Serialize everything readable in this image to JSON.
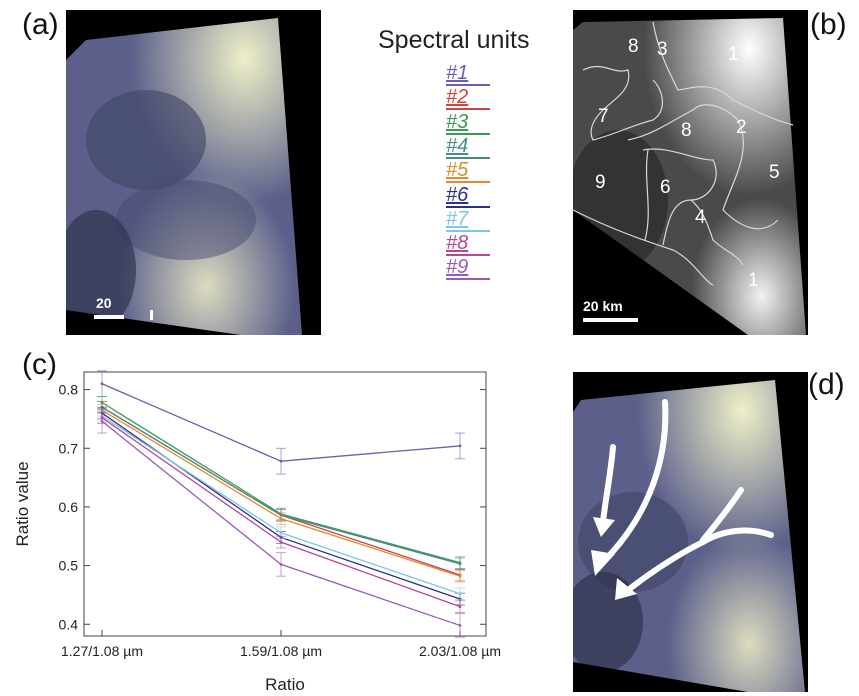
{
  "panels": {
    "a": {
      "label": "(a)",
      "scale_label": "20"
    },
    "b": {
      "label": "(b)",
      "scale_label": "20 km",
      "region_numbers": [
        "1",
        "2",
        "3",
        "4",
        "5",
        "6",
        "7",
        "8",
        "8",
        "9",
        "1"
      ]
    },
    "c": {
      "label": "(c)"
    },
    "d": {
      "label": "(d)"
    }
  },
  "legend": {
    "title": "Spectral units",
    "items": [
      {
        "label": "#1",
        "color": "#6a5fb0"
      },
      {
        "label": "#2",
        "color": "#d0443c"
      },
      {
        "label": "#3",
        "color": "#3f9a55"
      },
      {
        "label": "#4",
        "color": "#4a8a86"
      },
      {
        "label": "#5",
        "color": "#e08a2e"
      },
      {
        "label": "#6",
        "color": "#2b2f8f"
      },
      {
        "label": "#7",
        "color": "#7ec6e4"
      },
      {
        "label": "#8",
        "color": "#b8478f"
      },
      {
        "label": "#9",
        "color": "#9a5bb5"
      }
    ]
  },
  "chart_data": {
    "type": "line",
    "xlabel": "Ratio",
    "ylabel": "Ratio value",
    "categories": [
      "1.27/1.08 µm",
      "1.59/1.08 µm",
      "2.03/1.08 µm"
    ],
    "ylim": [
      0.38,
      0.83
    ],
    "yticks": [
      "0.4",
      "0.5",
      "0.6",
      "0.7",
      "0.8"
    ],
    "series": [
      {
        "name": "#1",
        "values": [
          0.81,
          0.678,
          0.704
        ],
        "error": 0.022
      },
      {
        "name": "#2",
        "values": [
          0.77,
          0.586,
          0.484
        ],
        "error": 0.01
      },
      {
        "name": "#3",
        "values": [
          0.778,
          0.588,
          0.505
        ],
        "error": 0.01
      },
      {
        "name": "#4",
        "values": [
          0.77,
          0.586,
          0.503
        ],
        "error": 0.01
      },
      {
        "name": "#5",
        "values": [
          0.765,
          0.58,
          0.482
        ],
        "error": 0.01
      },
      {
        "name": "#6",
        "values": [
          0.76,
          0.548,
          0.443
        ],
        "error": 0.01
      },
      {
        "name": "#7",
        "values": [
          0.755,
          0.556,
          0.452
        ],
        "error": 0.01
      },
      {
        "name": "#8",
        "values": [
          0.752,
          0.54,
          0.43
        ],
        "error": 0.01
      },
      {
        "name": "#9",
        "values": [
          0.746,
          0.502,
          0.398
        ],
        "error": 0.02
      }
    ]
  }
}
